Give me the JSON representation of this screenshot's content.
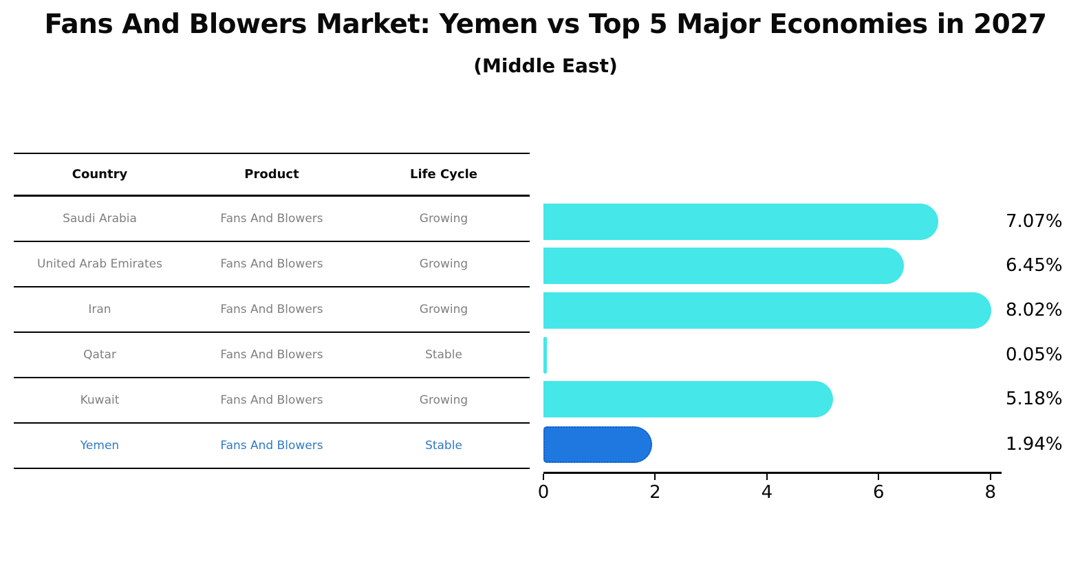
{
  "header": {
    "title": "Fans And Blowers Market: Yemen vs Top 5 Major Economies in 2027",
    "subtitle": "(Middle East)"
  },
  "table": {
    "headers": [
      "Country",
      "Product",
      "Life Cycle"
    ],
    "rows": [
      {
        "country": "Saudi Arabia",
        "product": "Fans And Blowers",
        "life_cycle": "Growing",
        "highlight": false
      },
      {
        "country": "United Arab Emirates",
        "product": "Fans And Blowers",
        "life_cycle": "Growing",
        "highlight": false
      },
      {
        "country": "Iran",
        "product": "Fans And Blowers",
        "life_cycle": "Growing",
        "highlight": false
      },
      {
        "country": "Qatar",
        "product": "Fans And Blowers",
        "life_cycle": "Stable",
        "highlight": false
      },
      {
        "country": "Kuwait",
        "product": "Fans And Blowers",
        "life_cycle": "Growing",
        "highlight": false
      },
      {
        "country": "Yemen",
        "product": "Fans And Blowers",
        "life_cycle": "Stable",
        "highlight": true
      }
    ]
  },
  "chart_data": {
    "type": "bar",
    "orientation": "horizontal",
    "title": "Fans And Blowers Market: Yemen vs Top 5 Major Economies in 2027",
    "subtitle": "(Middle East)",
    "categories": [
      "Saudi Arabia",
      "United Arab Emirates",
      "Iran",
      "Qatar",
      "Kuwait",
      "Yemen"
    ],
    "values": [
      7.07,
      6.45,
      8.02,
      0.05,
      5.18,
      1.94
    ],
    "value_labels": [
      "7.07%",
      "6.45%",
      "8.02%",
      "0.05%",
      "5.18%",
      "1.94%"
    ],
    "xticks": [
      0,
      2,
      4,
      6,
      8
    ],
    "xlim": [
      0,
      8.2
    ],
    "xlabel": "",
    "ylabel": "",
    "grid": false,
    "legend": false,
    "bar_color": "#45e7e8",
    "highlight_color": "#1e78e0",
    "highlight_border_color": "#0d5fc6",
    "highlight_text_color": "#2e7ac5",
    "highlight_index": 5
  }
}
